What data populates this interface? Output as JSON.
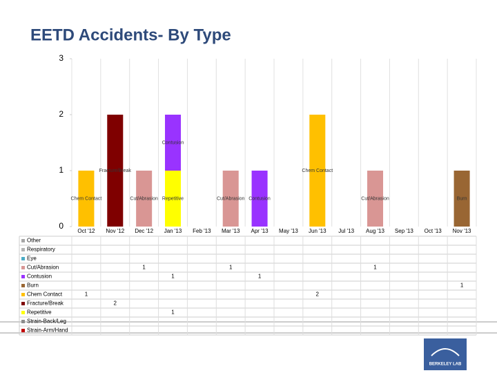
{
  "chart_data": {
    "type": "stacked_bar",
    "title": "EETD Accidents- By Type",
    "categories": [
      "Oct '12",
      "Nov '12",
      "Dec '12",
      "Jan '13",
      "Feb '13",
      "Mar '13",
      "Apr '13",
      "May '13",
      "Jun '13",
      "Jul '13",
      "Aug '13",
      "Sep '13",
      "Oct '13",
      "Nov '13"
    ],
    "series": [
      {
        "name": "Other",
        "color": "#a6a6a6",
        "values": [
          null,
          null,
          null,
          null,
          null,
          null,
          null,
          null,
          null,
          null,
          null,
          null,
          null,
          null
        ]
      },
      {
        "name": "Respiratory",
        "color": "#b3b3b3",
        "values": [
          null,
          null,
          null,
          null,
          null,
          null,
          null,
          null,
          null,
          null,
          null,
          null,
          null,
          null
        ]
      },
      {
        "name": "Eye",
        "color": "#4bacc6",
        "values": [
          null,
          null,
          null,
          null,
          null,
          null,
          null,
          null,
          null,
          null,
          null,
          null,
          null,
          null
        ]
      },
      {
        "name": "Cut/Abrasion",
        "color": "#d99694",
        "values": [
          null,
          null,
          1,
          null,
          null,
          1,
          null,
          null,
          null,
          null,
          1,
          null,
          null,
          null
        ]
      },
      {
        "name": "Contusion",
        "color": "#9933ff",
        "values": [
          null,
          null,
          null,
          1,
          null,
          null,
          1,
          null,
          null,
          null,
          null,
          null,
          null,
          null
        ]
      },
      {
        "name": "Burn",
        "color": "#996633",
        "values": [
          null,
          null,
          null,
          null,
          null,
          null,
          null,
          null,
          null,
          null,
          null,
          null,
          null,
          1
        ]
      },
      {
        "name": "Chem Contact",
        "color": "#ffc000",
        "values": [
          1,
          null,
          null,
          null,
          null,
          null,
          null,
          null,
          2,
          null,
          null,
          null,
          null,
          null
        ]
      },
      {
        "name": "Fracture/Break",
        "color": "#7f0000",
        "values": [
          null,
          2,
          null,
          null,
          null,
          null,
          null,
          null,
          null,
          null,
          null,
          null,
          null,
          null
        ]
      },
      {
        "name": "Repetitive",
        "color": "#ffff00",
        "values": [
          null,
          null,
          null,
          1,
          null,
          null,
          null,
          null,
          null,
          null,
          null,
          null,
          null,
          null
        ]
      },
      {
        "name": "Strain-Back/Leg",
        "color": "#8c8c8c",
        "values": [
          null,
          null,
          null,
          null,
          null,
          null,
          null,
          null,
          null,
          null,
          null,
          null,
          null,
          null
        ]
      },
      {
        "name": "Strain-Arm/Hand",
        "color": "#c00000",
        "values": [
          null,
          null,
          null,
          null,
          null,
          null,
          null,
          null,
          null,
          null,
          null,
          null,
          null,
          null
        ]
      }
    ],
    "ylim": [
      0,
      3
    ],
    "yticks": [
      0,
      1,
      2,
      3
    ],
    "data_labels": "series_name",
    "data_table": true
  },
  "logo": "BERKELEY LAB"
}
